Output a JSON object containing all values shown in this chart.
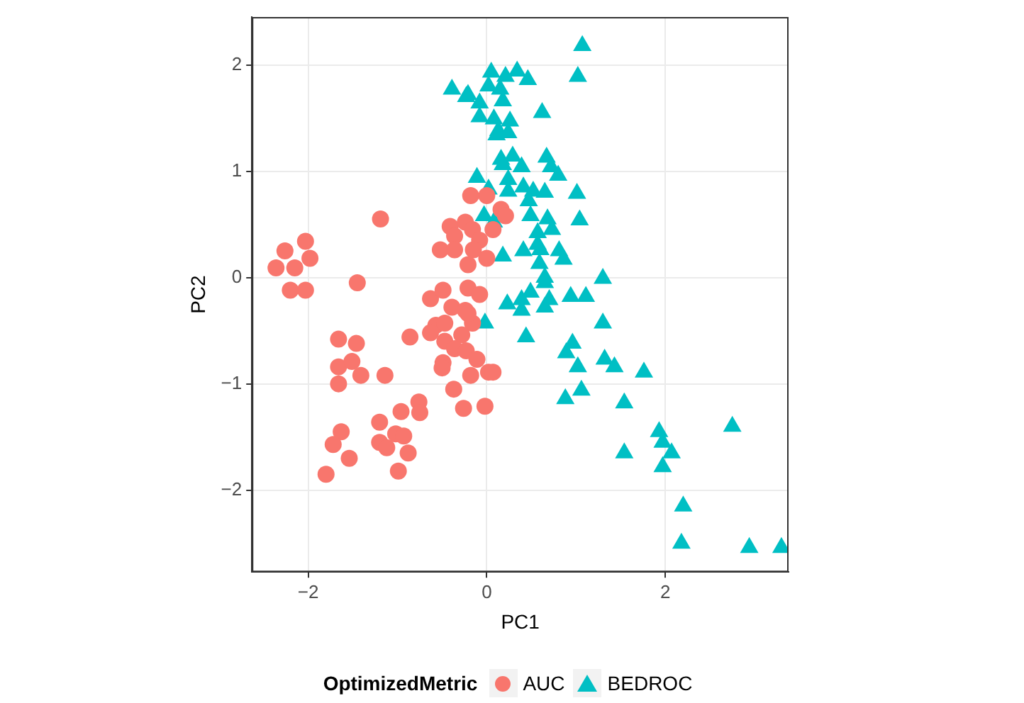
{
  "chart_data": {
    "type": "scatter",
    "xlabel": "PC1",
    "ylabel": "PC2",
    "legend_title": "OptimizedMetric",
    "legend": "bottom",
    "grid": true,
    "xlim": [
      -2.63,
      3.38
    ],
    "ylim": [
      -2.77,
      2.45
    ],
    "xticks": [
      -2,
      0,
      2
    ],
    "yticks": [
      -2,
      -1,
      0,
      1,
      2
    ],
    "series": [
      {
        "name": "AUC",
        "color": "#f8766d",
        "marker": "circle",
        "x": [
          -0.18,
          0,
          0.16,
          0.21,
          -0.41,
          -0.24,
          -0.16,
          -0.08,
          -0.36,
          0.07,
          -0.52,
          -0.36,
          -0.15,
          0,
          -0.21,
          -1.19,
          -1.45,
          -2.26,
          -2.03,
          -1.98,
          -2.36,
          -2.15,
          -2.2,
          -2.03,
          -0.63,
          -0.49,
          -0.21,
          -0.08,
          -0.39,
          -0.24,
          -0.57,
          -0.47,
          -0.16,
          -0.63,
          -0.47,
          -0.28,
          -0.36,
          -0.23,
          -0.11,
          0.02,
          -0.49,
          -0.5,
          -0.18,
          -0.37,
          -0.26,
          -0.02,
          -0.86,
          -1.66,
          -1.46,
          -1.66,
          -1.51,
          -1.41,
          -1.66,
          -1.14,
          -0.76,
          -0.75,
          -0.96,
          -1.2,
          -1.02,
          -0.93,
          -1.2,
          -1.12,
          -0.88,
          -0.99,
          -1.63,
          -1.72,
          -1.54,
          -1.8,
          -0.21,
          0.07
        ],
        "values": [
          0.77,
          0.77,
          0.64,
          0.58,
          0.48,
          0.52,
          0.45,
          0.35,
          0.39,
          0.45,
          0.26,
          0.26,
          0.26,
          0.18,
          0.12,
          0.55,
          -0.05,
          0.25,
          0.34,
          0.18,
          0.09,
          0.09,
          -0.12,
          -0.12,
          -0.2,
          -0.12,
          -0.1,
          -0.16,
          -0.28,
          -0.31,
          -0.45,
          -0.43,
          -0.43,
          -0.52,
          -0.6,
          -0.54,
          -0.67,
          -0.69,
          -0.77,
          -0.89,
          -0.8,
          -0.85,
          -0.92,
          -1.05,
          -1.23,
          -1.21,
          -0.56,
          -0.58,
          -0.62,
          -0.84,
          -0.79,
          -0.92,
          -1.0,
          -0.92,
          -1.17,
          -1.27,
          -1.26,
          -1.36,
          -1.47,
          -1.49,
          -1.55,
          -1.6,
          -1.65,
          -1.82,
          -1.45,
          -1.57,
          -1.7,
          -1.85,
          -0.34,
          -0.89
        ]
      },
      {
        "name": "BEDROC",
        "color": "#00bfc4",
        "marker": "triangle",
        "x": [
          -0.39,
          -0.23,
          -0.08,
          0.05,
          0.21,
          0.02,
          0.18,
          -0.08,
          0.08,
          0.13,
          0.26,
          0.16,
          0.29,
          -0.11,
          0.02,
          0.24,
          0.24,
          -0.03,
          0.08,
          0.18,
          1.07,
          1.02,
          0.34,
          0.46,
          -0.21,
          0.15,
          0.62,
          0.11,
          0.24,
          0.67,
          0.72,
          0.8,
          0.18,
          0.39,
          0.41,
          0.52,
          0.65,
          1.01,
          0.47,
          0.49,
          0.68,
          1.04,
          0.57,
          0.73,
          0.57,
          0.41,
          0.6,
          0.81,
          0.86,
          0.59,
          0.65,
          1.3,
          0.65,
          0.23,
          0.39,
          0.39,
          0.49,
          0.65,
          0.7,
          0.94,
          1.11,
          1.3,
          -0.02,
          0.44,
          0.96,
          0.89,
          1.02,
          1.32,
          1.43,
          1.76,
          1.06,
          0.88,
          1.54,
          1.93,
          1.97,
          2.07,
          1.97,
          2.75,
          1.54,
          2.2,
          2.18,
          2.94,
          3.3
        ],
        "values": [
          1.77,
          1.7,
          1.64,
          1.93,
          1.89,
          1.8,
          1.66,
          1.51,
          1.49,
          1.38,
          1.47,
          1.11,
          1.14,
          0.94,
          0.83,
          0.92,
          0.81,
          0.58,
          0.52,
          0.2,
          2.18,
          1.89,
          1.94,
          1.86,
          1.72,
          1.77,
          1.55,
          1.34,
          1.36,
          1.13,
          1.04,
          0.96,
          1.06,
          1.04,
          0.85,
          0.81,
          0.8,
          0.79,
          0.72,
          0.58,
          0.55,
          0.54,
          0.42,
          0.45,
          0.31,
          0.25,
          0.26,
          0.25,
          0.17,
          0.13,
          0.0,
          -0.01,
          -0.05,
          -0.25,
          -0.21,
          -0.31,
          -0.14,
          -0.28,
          -0.21,
          -0.18,
          -0.18,
          -0.43,
          -0.43,
          -0.56,
          -0.62,
          -0.71,
          -0.84,
          -0.77,
          -0.84,
          -0.89,
          -1.06,
          -1.14,
          -1.18,
          -1.45,
          -1.55,
          -1.65,
          -1.78,
          -1.4,
          -1.65,
          -2.15,
          -2.5,
          -2.54,
          -2.54
        ]
      }
    ]
  }
}
